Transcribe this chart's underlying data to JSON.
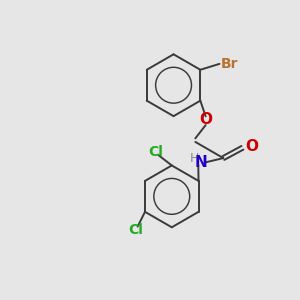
{
  "background_color": "#e6e6e6",
  "bond_color": "#3a3a3a",
  "bond_width": 1.4,
  "atom_colors": {
    "Br": "#b87333",
    "O": "#cc0000",
    "N": "#2200cc",
    "H": "#888888",
    "Cl": "#22aa22",
    "C": "#3a3a3a"
  },
  "font_size": 10,
  "font_size_h": 9
}
